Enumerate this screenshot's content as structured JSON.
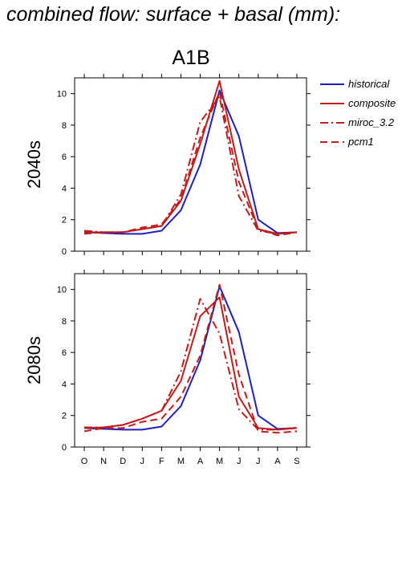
{
  "figure_title": "combined flow: surface + basal (mm):",
  "scenario_title": "A1B",
  "series_legend": [
    {
      "name": "historical",
      "color": "#1f1fbf",
      "dash": "solid"
    },
    {
      "name": "composite",
      "color": "#c01c1c",
      "dash": "solid"
    },
    {
      "name": "miroc_3.2",
      "color": "#c01c1c",
      "dash": "dashdot"
    },
    {
      "name": "pcm1",
      "color": "#c01c1c",
      "dash": "dashed"
    }
  ],
  "chart_data": [
    {
      "type": "line",
      "title": "2040s",
      "xlabel": "",
      "ylabel": "2040s",
      "categories": [
        "O",
        "N",
        "D",
        "J",
        "F",
        "M",
        "A",
        "M",
        "J",
        "J",
        "A",
        "S"
      ],
      "ylim": [
        0,
        11
      ],
      "yticks": [
        0,
        2,
        4,
        6,
        8,
        10
      ],
      "grid": false,
      "series": [
        {
          "name": "historical",
          "values": [
            1.2,
            1.15,
            1.1,
            1.1,
            1.3,
            2.6,
            5.5,
            10.2,
            7.3,
            2.0,
            1.15,
            1.2
          ]
        },
        {
          "name": "composite",
          "values": [
            1.2,
            1.2,
            1.2,
            1.4,
            1.6,
            3.2,
            6.8,
            10.8,
            5.2,
            1.4,
            1.1,
            1.2
          ]
        },
        {
          "name": "miroc_3.2",
          "values": [
            1.3,
            1.2,
            1.2,
            1.4,
            1.6,
            3.6,
            8.2,
            9.8,
            3.5,
            1.3,
            1.1,
            1.2
          ]
        },
        {
          "name": "pcm1",
          "values": [
            1.1,
            1.2,
            1.2,
            1.5,
            1.7,
            3.3,
            7.2,
            10.1,
            4.4,
            1.4,
            1.0,
            1.2
          ]
        }
      ]
    },
    {
      "type": "line",
      "title": "2080s",
      "xlabel": "",
      "ylabel": "2080s",
      "categories": [
        "O",
        "N",
        "D",
        "J",
        "F",
        "M",
        "A",
        "M",
        "J",
        "J",
        "A",
        "S"
      ],
      "ylim": [
        0,
        11
      ],
      "yticks": [
        0,
        2,
        4,
        6,
        8,
        10
      ],
      "grid": false,
      "series": [
        {
          "name": "historical",
          "values": [
            1.2,
            1.15,
            1.1,
            1.1,
            1.3,
            2.6,
            5.5,
            10.2,
            7.3,
            2.0,
            1.15,
            1.2
          ]
        },
        {
          "name": "composite",
          "values": [
            1.2,
            1.25,
            1.4,
            1.8,
            2.3,
            4.2,
            8.3,
            9.5,
            3.2,
            1.2,
            1.1,
            1.2
          ]
        },
        {
          "name": "miroc_3.2",
          "values": [
            1.25,
            1.25,
            1.4,
            1.8,
            2.3,
            4.8,
            9.4,
            7.2,
            2.4,
            1.1,
            1.1,
            1.25
          ]
        },
        {
          "name": "pcm1",
          "values": [
            1.0,
            1.2,
            1.2,
            1.6,
            1.8,
            3.2,
            5.8,
            10.3,
            4.6,
            1.0,
            0.9,
            1.0
          ]
        }
      ]
    }
  ]
}
